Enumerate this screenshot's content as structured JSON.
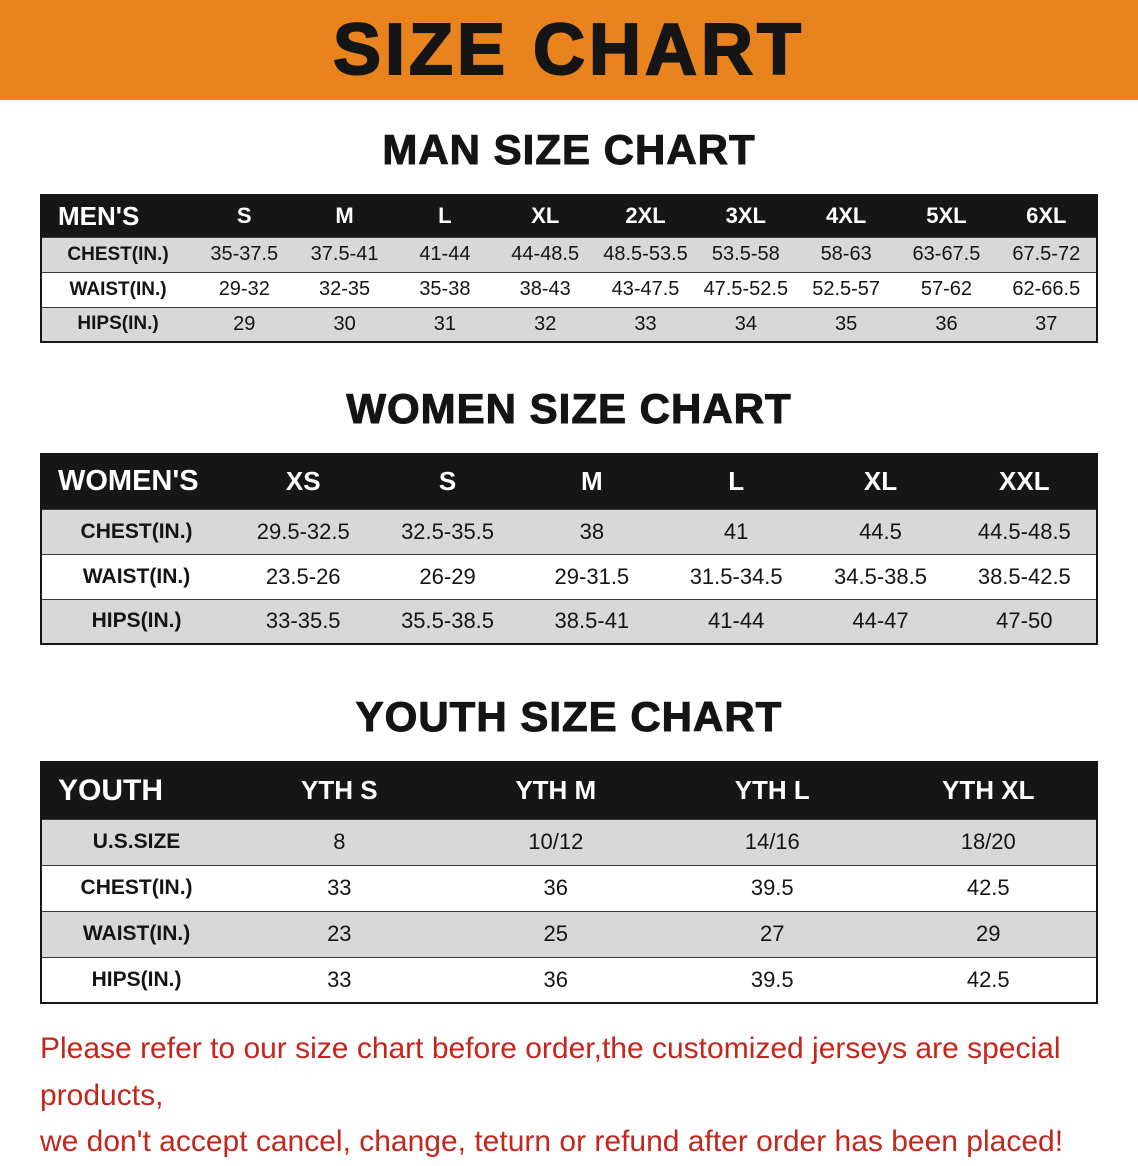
{
  "banner": {
    "title": "SIZE CHART",
    "bg_color": "#E8831D",
    "text_color": "#151515"
  },
  "sections": [
    {
      "id": "men",
      "heading": "MAN SIZE CHART",
      "table": {
        "header": [
          "MEN'S",
          "S",
          "M",
          "L",
          "XL",
          "2XL",
          "3XL",
          "4XL",
          "5XL",
          "6XL"
        ],
        "rows": [
          {
            "label": "CHEST(IN.)",
            "values": [
              "35-37.5",
              "37.5-41",
              "41-44",
              "44-48.5",
              "48.5-53.5",
              "53.5-58",
              "58-63",
              "63-67.5",
              "67.5-72"
            ]
          },
          {
            "label": "WAIST(IN.)",
            "values": [
              "29-32",
              "32-35",
              "35-38",
              "38-43",
              "43-47.5",
              "47.5-52.5",
              "52.5-57",
              "57-62",
              "62-66.5"
            ]
          },
          {
            "label": "HIPS(IN.)",
            "values": [
              "29",
              "30",
              "31",
              "32",
              "33",
              "34",
              "35",
              "36",
              "37"
            ]
          }
        ]
      }
    },
    {
      "id": "women",
      "heading": "WOMEN SIZE CHART",
      "table": {
        "header": [
          "WOMEN'S",
          "XS",
          "S",
          "M",
          "L",
          "XL",
          "XXL"
        ],
        "rows": [
          {
            "label": "CHEST(IN.)",
            "values": [
              "29.5-32.5",
              "32.5-35.5",
              "38",
              "41",
              "44.5",
              "44.5-48.5"
            ]
          },
          {
            "label": "WAIST(IN.)",
            "values": [
              "23.5-26",
              "26-29",
              "29-31.5",
              "31.5-34.5",
              "34.5-38.5",
              "38.5-42.5"
            ]
          },
          {
            "label": "HIPS(IN.)",
            "values": [
              "33-35.5",
              "35.5-38.5",
              "38.5-41",
              "41-44",
              "44-47",
              "47-50"
            ]
          }
        ]
      }
    },
    {
      "id": "youth",
      "heading": "YOUTH SIZE CHART",
      "table": {
        "header": [
          "YOUTH",
          "YTH S",
          "YTH M",
          "YTH L",
          "YTH XL"
        ],
        "rows": [
          {
            "label": "U.S.SIZE",
            "values": [
              "8",
              "10/12",
              "14/16",
              "18/20"
            ]
          },
          {
            "label": "CHEST(IN.)",
            "values": [
              "33",
              "36",
              "39.5",
              "42.5"
            ]
          },
          {
            "label": "WAIST(IN.)",
            "values": [
              "23",
              "25",
              "27",
              "29"
            ]
          },
          {
            "label": "HIPS(IN.)",
            "values": [
              "33",
              "36",
              "39.5",
              "42.5"
            ]
          }
        ]
      }
    }
  ],
  "disclaimer": {
    "line1": "Please refer to our size chart before order,the customized jerseys are special products,",
    "line2": "we don't accept cancel, change, teturn or refund after order has been placed!",
    "text_color": "#C3261D"
  }
}
